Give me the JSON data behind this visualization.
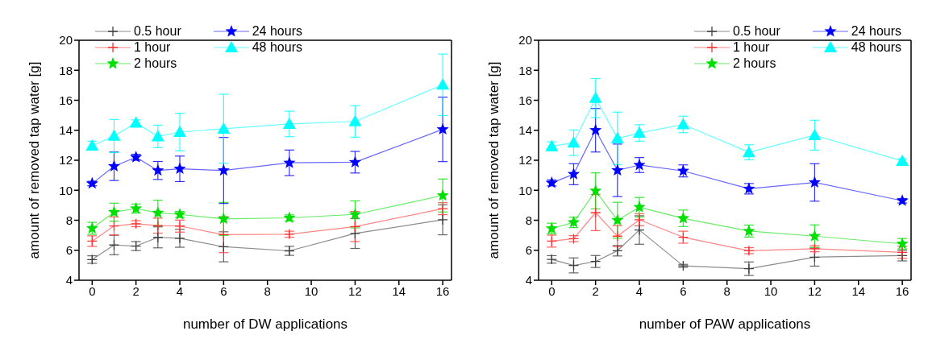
{
  "chart_data": [
    {
      "type": "line",
      "xlabel": "number of DW applications",
      "ylabel": "amount of removed tap water [g]",
      "x": [
        0,
        1,
        2,
        3,
        4,
        6,
        9,
        12,
        16
      ],
      "xlim": [
        -0.6,
        16.4
      ],
      "xticks": [
        0,
        2,
        4,
        6,
        8,
        10,
        12,
        14,
        16
      ],
      "ylim": [
        4,
        20
      ],
      "yticks": [
        4,
        6,
        8,
        10,
        12,
        14,
        16,
        18,
        20
      ],
      "grid": false,
      "legend": "top left",
      "series": [
        {
          "name": "0.5 hour",
          "color": "#404040",
          "marker": "cross",
          "values": [
            5.38,
            6.35,
            6.28,
            6.86,
            6.8,
            6.23,
            5.96,
            7.12,
            8.03
          ],
          "errors": [
            0.25,
            0.65,
            0.3,
            0.7,
            0.6,
            1.0,
            0.3,
            1.0,
            1.0
          ]
        },
        {
          "name": "1 hour",
          "color": "#ff3333",
          "marker": "cross",
          "values": [
            6.61,
            7.62,
            7.77,
            7.64,
            7.61,
            7.04,
            7.07,
            7.58,
            8.77
          ],
          "errors": [
            0.35,
            0.6,
            0.2,
            0.5,
            0.4,
            1.2,
            0.2,
            1.0,
            0.4
          ]
        },
        {
          "name": "2 hours",
          "color": "#00e000",
          "marker": "star",
          "values": [
            7.46,
            8.54,
            8.78,
            8.49,
            8.39,
            8.09,
            8.16,
            8.39,
            9.65
          ],
          "errors": [
            0.4,
            0.6,
            0.3,
            0.85,
            0.2,
            1.1,
            0.2,
            0.9,
            1.1
          ]
        },
        {
          "name": "24 hours",
          "color": "#0000ff",
          "marker": "star",
          "values": [
            10.45,
            11.6,
            12.2,
            11.32,
            11.43,
            11.32,
            11.83,
            11.87,
            14.06
          ],
          "errors": [
            0.15,
            0.95,
            0.2,
            0.6,
            0.85,
            2.2,
            0.85,
            0.72,
            2.15
          ]
        },
        {
          "name": "48 hours",
          "color": "#00ffff",
          "marker": "triangle",
          "values": [
            12.97,
            13.62,
            14.49,
            13.59,
            13.88,
            14.1,
            14.42,
            14.59,
            17.03
          ],
          "errors": [
            0.3,
            1.1,
            0.2,
            0.75,
            1.25,
            2.3,
            0.85,
            1.05,
            2.05
          ]
        }
      ]
    },
    {
      "type": "line",
      "xlabel": "number of PAW applications",
      "ylabel": "amount of removed tap water [g]",
      "x": [
        0,
        1,
        2,
        3,
        4,
        6,
        9,
        12,
        16
      ],
      "xlim": [
        -0.6,
        16.4
      ],
      "xticks": [
        0,
        2,
        4,
        6,
        8,
        10,
        12,
        14,
        16
      ],
      "ylim": [
        4,
        20
      ],
      "yticks": [
        4,
        6,
        8,
        10,
        12,
        14,
        16,
        18,
        20
      ],
      "grid": false,
      "legend": "top right",
      "series": [
        {
          "name": "0.5 hour",
          "color": "#404040",
          "marker": "cross",
          "values": [
            5.39,
            4.99,
            5.25,
            5.97,
            7.35,
            4.96,
            4.77,
            5.54,
            5.64
          ],
          "errors": [
            0.25,
            0.5,
            0.4,
            0.35,
            0.95,
            0.1,
            0.45,
            0.6,
            0.35
          ]
        },
        {
          "name": "1 hour",
          "color": "#ff3333",
          "marker": "cross",
          "values": [
            6.61,
            6.77,
            8.51,
            6.94,
            8.03,
            6.87,
            5.97,
            6.1,
            5.86
          ],
          "errors": [
            0.4,
            0.2,
            1.2,
            0.7,
            0.4,
            0.4,
            0.2,
            0.2,
            0.4
          ]
        },
        {
          "name": "2 hours",
          "color": "#00e000",
          "marker": "star",
          "values": [
            7.45,
            7.86,
            9.96,
            8.0,
            8.87,
            8.13,
            7.28,
            6.94,
            6.43
          ],
          "errors": [
            0.35,
            0.35,
            1.2,
            1.2,
            0.65,
            0.55,
            0.4,
            0.75,
            0.35
          ]
        },
        {
          "name": "24 hours",
          "color": "#0000ff",
          "marker": "star",
          "values": [
            10.49,
            11.07,
            14.0,
            11.33,
            11.68,
            11.29,
            10.1,
            10.52,
            9.3
          ],
          "errors": [
            0.2,
            0.7,
            1.45,
            1.75,
            0.5,
            0.4,
            0.35,
            1.25,
            0.15
          ]
        },
        {
          "name": "48 hours",
          "color": "#00ffff",
          "marker": "triangle",
          "values": [
            12.93,
            13.17,
            16.15,
            13.46,
            13.82,
            14.39,
            12.53,
            13.67,
            11.95
          ],
          "errors": [
            0.3,
            0.85,
            1.3,
            1.75,
            0.55,
            0.55,
            0.5,
            1.0,
            0.15
          ]
        }
      ]
    }
  ]
}
